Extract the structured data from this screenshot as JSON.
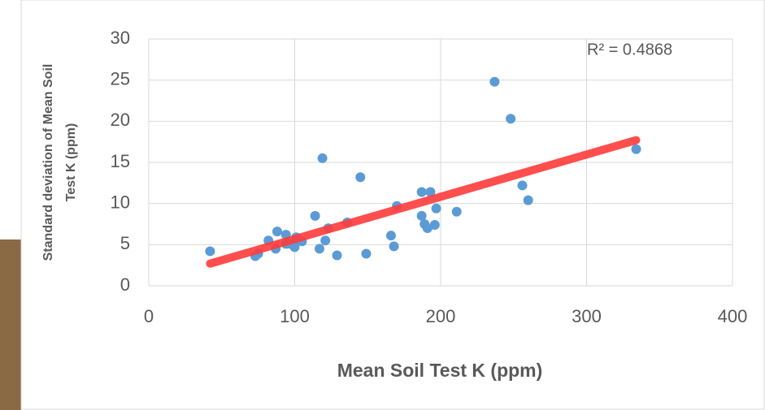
{
  "chart_data": {
    "type": "scatter",
    "xlabel": "Mean Soil Test K (ppm)",
    "ylabel": [
      "Standard deviation of Mean Soil",
      "Test K (ppm)"
    ],
    "annotation": "R² = 0.4868",
    "xlim": [
      0,
      400
    ],
    "xticks": [
      0,
      100,
      200,
      300,
      400
    ],
    "ylim": [
      0,
      30
    ],
    "yticks": [
      0,
      5,
      10,
      15,
      20,
      25,
      30
    ],
    "grid": true,
    "series": [
      {
        "color": "#5b9bd5",
        "x": [
          42,
          73,
          75,
          82,
          88,
          87,
          94,
          94,
          97,
          100,
          102,
          105,
          101,
          114,
          117,
          119,
          121,
          123,
          129,
          136,
          145,
          149,
          166,
          168,
          170,
          187,
          187,
          189,
          191,
          193,
          196,
          197,
          211,
          237,
          248,
          256,
          260,
          334
        ],
        "values": [
          4.2,
          3.6,
          3.9,
          5.5,
          6.6,
          4.5,
          6.2,
          5.1,
          5.1,
          4.7,
          5.6,
          5.4,
          5.9,
          8.5,
          4.5,
          15.5,
          5.5,
          7.0,
          3.7,
          7.7,
          13.2,
          3.9,
          6.1,
          4.8,
          9.7,
          11.4,
          8.5,
          7.5,
          7.0,
          11.4,
          7.4,
          9.4,
          9.0,
          24.8,
          20.3,
          12.2,
          10.4,
          16.6
        ]
      }
    ],
    "trendline": {
      "color": "#ff3b3b",
      "x": [
        42,
        334
      ],
      "values": [
        2.7,
        17.7
      ]
    }
  }
}
